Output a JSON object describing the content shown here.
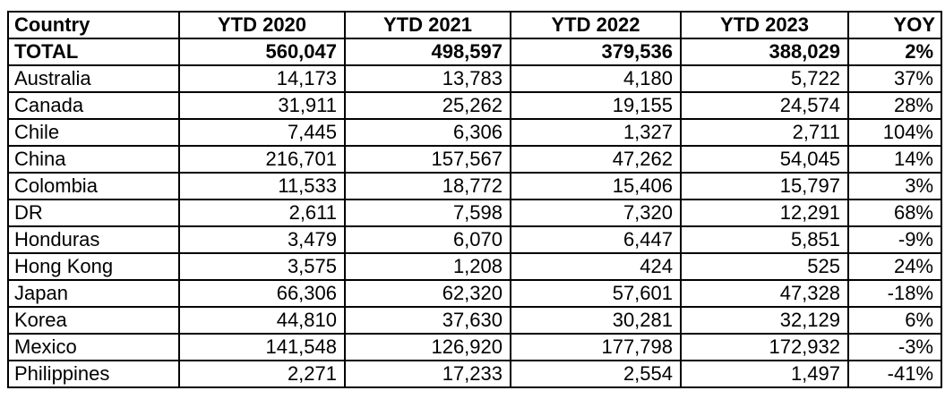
{
  "table": {
    "headers": [
      "Country",
      "YTD 2020",
      "YTD 2021",
      "YTD 2022",
      "YTD 2023",
      "YOY"
    ],
    "total": [
      "TOTAL",
      "560,047",
      "498,597",
      "379,536",
      "388,029",
      "2%"
    ],
    "rows": [
      [
        "Australia",
        "14,173",
        "13,783",
        "4,180",
        "5,722",
        "37%"
      ],
      [
        "Canada",
        "31,911",
        "25,262",
        "19,155",
        "24,574",
        "28%"
      ],
      [
        "Chile",
        "7,445",
        "6,306",
        "1,327",
        "2,711",
        "104%"
      ],
      [
        "China",
        "216,701",
        "157,567",
        "47,262",
        "54,045",
        "14%"
      ],
      [
        "Colombia",
        "11,533",
        "18,772",
        "15,406",
        "15,797",
        "3%"
      ],
      [
        "DR",
        "2,611",
        "7,598",
        "7,320",
        "12,291",
        "68%"
      ],
      [
        "Honduras",
        "3,479",
        "6,070",
        "6,447",
        "5,851",
        "-9%"
      ],
      [
        "Hong Kong",
        "3,575",
        "1,208",
        "424",
        "525",
        "24%"
      ],
      [
        "Japan",
        "66,306",
        "62,320",
        "57,601",
        "47,328",
        "-18%"
      ],
      [
        "Korea",
        "44,810",
        "37,630",
        "30,281",
        "32,129",
        "6%"
      ],
      [
        "Mexico",
        "141,548",
        "126,920",
        "177,798",
        "172,932",
        "-3%"
      ],
      [
        "Philippines",
        "2,271",
        "17,233",
        "2,554",
        "1,497",
        "-41%"
      ]
    ]
  }
}
